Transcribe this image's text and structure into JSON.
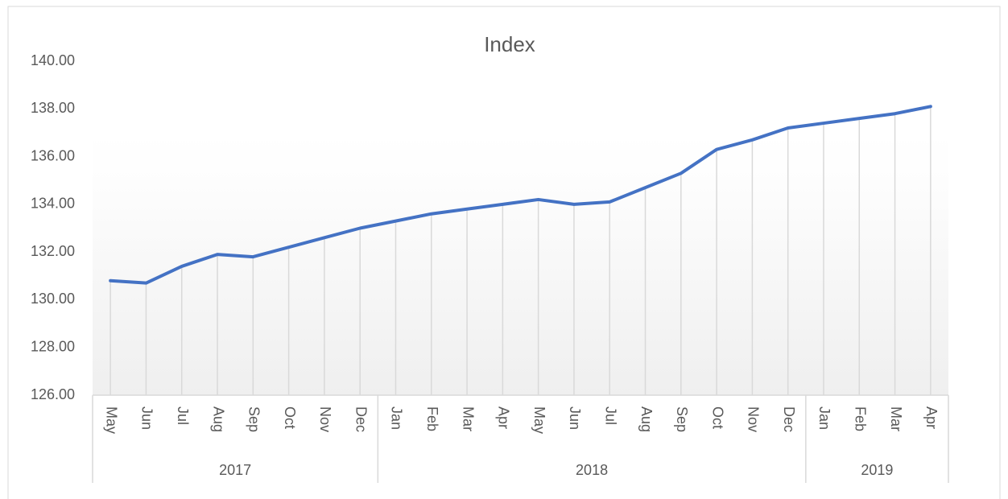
{
  "chart_data": {
    "type": "line",
    "title": "Index",
    "categories": [
      "May",
      "Jun",
      "Jul",
      "Aug",
      "Sep",
      "Oct",
      "Nov",
      "Dec",
      "Jan",
      "Feb",
      "Mar",
      "Apr",
      "May",
      "Jun",
      "Jul",
      "Aug",
      "Sep",
      "Oct",
      "Nov",
      "Dec",
      "Jan",
      "Feb",
      "Mar",
      "Apr"
    ],
    "category_groups": [
      "2017",
      null,
      null,
      null,
      null,
      null,
      null,
      null,
      "2018",
      null,
      null,
      null,
      null,
      null,
      null,
      null,
      null,
      null,
      null,
      null,
      "2019",
      null,
      null,
      null
    ],
    "series": [
      {
        "name": "Index",
        "color": "#4472c4",
        "values": [
          130.8,
          130.7,
          131.4,
          131.9,
          131.8,
          132.2,
          132.6,
          133.0,
          133.3,
          133.6,
          133.8,
          134.0,
          134.2,
          134.0,
          134.1,
          134.7,
          135.3,
          136.3,
          136.7,
          137.2,
          137.4,
          137.6,
          137.8,
          138.1
        ]
      }
    ],
    "ylim": [
      126,
      140
    ],
    "yticks": [
      {
        "value": 126,
        "label": "126.00"
      },
      {
        "value": 128,
        "label": "128.00"
      },
      {
        "value": 130,
        "label": "130.00"
      },
      {
        "value": 132,
        "label": "132.00"
      },
      {
        "value": 134,
        "label": "134.00"
      },
      {
        "value": 136,
        "label": "136.00"
      },
      {
        "value": 138,
        "label": "138.00"
      },
      {
        "value": 140,
        "label": "140.00"
      }
    ],
    "drop_lines": true
  }
}
